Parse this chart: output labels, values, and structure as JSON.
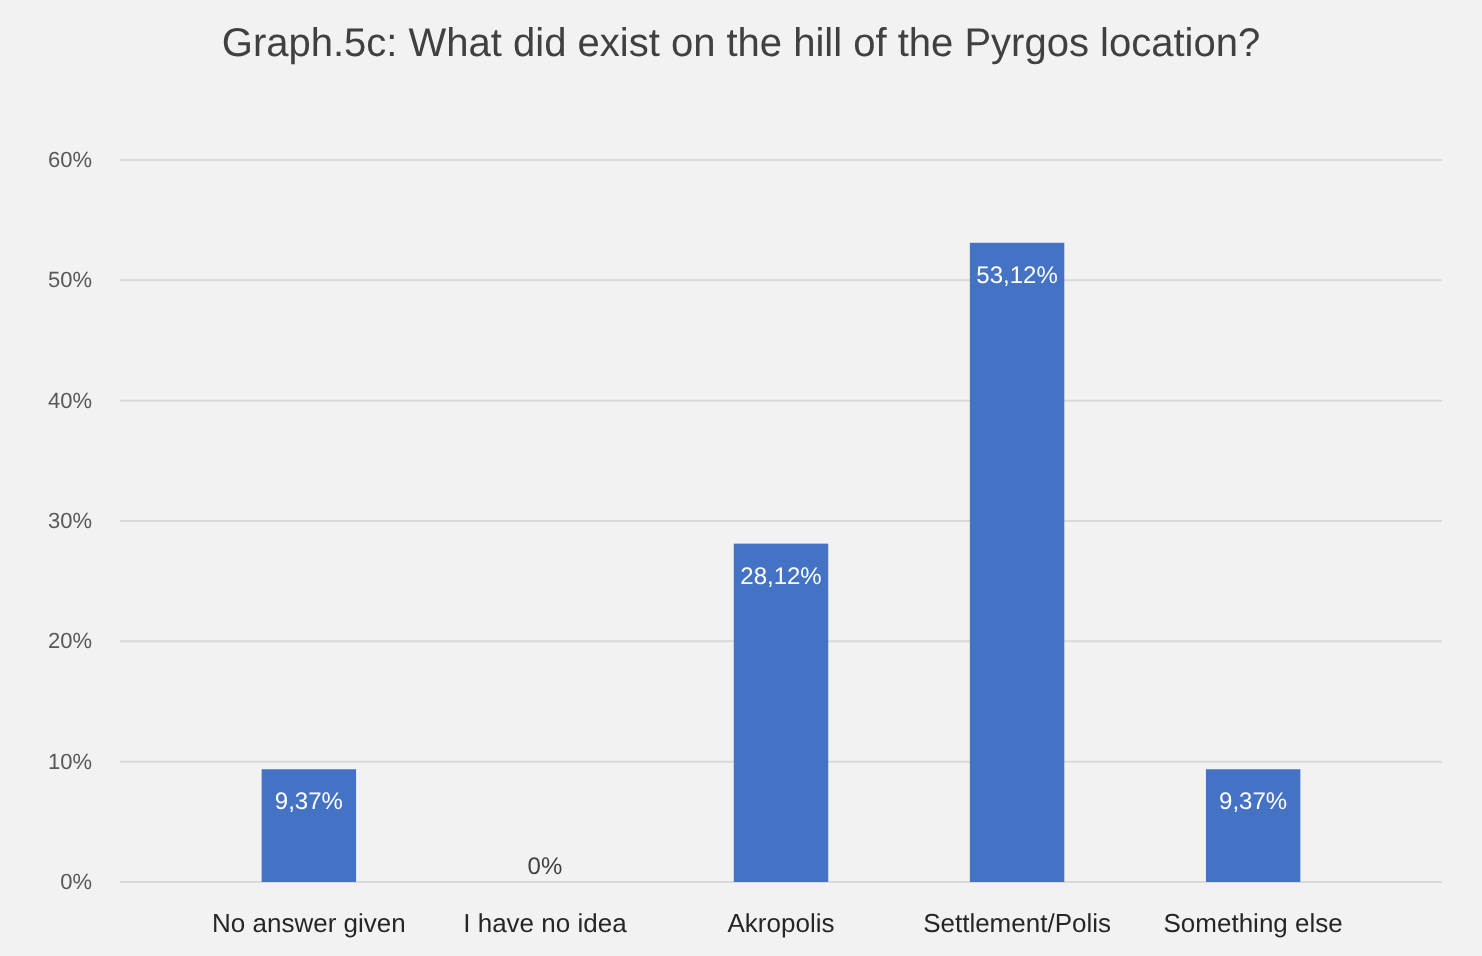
{
  "chart_data": {
    "type": "bar",
    "title": "Graph.5c: What did exist on the hill of the Pyrgos location?",
    "categories": [
      "No answer given",
      "I have no idea",
      "Akropolis",
      "Settlement/Polis",
      "Something else"
    ],
    "values": [
      9.37,
      0,
      28.12,
      53.12,
      9.37
    ],
    "value_labels": [
      "9,37%",
      "0%",
      "28,12%",
      "53,12%",
      "9,37%"
    ],
    "color": "#4472c4",
    "ylim": [
      0,
      60
    ],
    "yticks": [
      {
        "value": 0,
        "label": "0%"
      },
      {
        "value": 10,
        "label": "10%"
      },
      {
        "value": 20,
        "label": "20%"
      },
      {
        "value": 30,
        "label": "30%"
      },
      {
        "value": 40,
        "label": "40%"
      },
      {
        "value": 50,
        "label": "50%"
      },
      {
        "value": 60,
        "label": "60%"
      }
    ],
    "grid": "y"
  }
}
